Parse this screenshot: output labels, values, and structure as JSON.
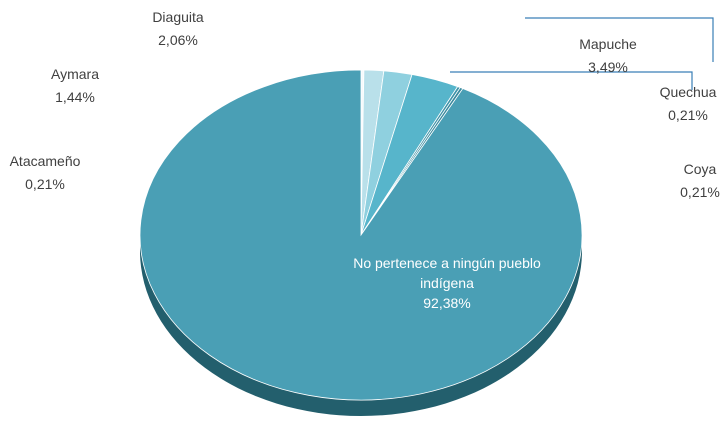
{
  "chart_data": {
    "type": "pie",
    "categories": [
      "Atacameño",
      "Aymara",
      "Diaguita",
      "Mapuche",
      "Quechua",
      "Coya",
      "No pertenece a ningún pueblo indígena"
    ],
    "values": [
      0.21,
      1.44,
      2.06,
      3.49,
      0.21,
      0.21,
      92.38
    ],
    "value_labels": [
      "0,21%",
      "1,44%",
      "2,06%",
      "3,49%",
      "0,21%",
      "0,21%",
      "92,38%"
    ],
    "colors": [
      "#f4fafc",
      "#b9e0ea",
      "#8fd0df",
      "#57b5cb",
      "#3e93a8",
      "#3a8a9e",
      "#4a9fb5"
    ]
  }
}
